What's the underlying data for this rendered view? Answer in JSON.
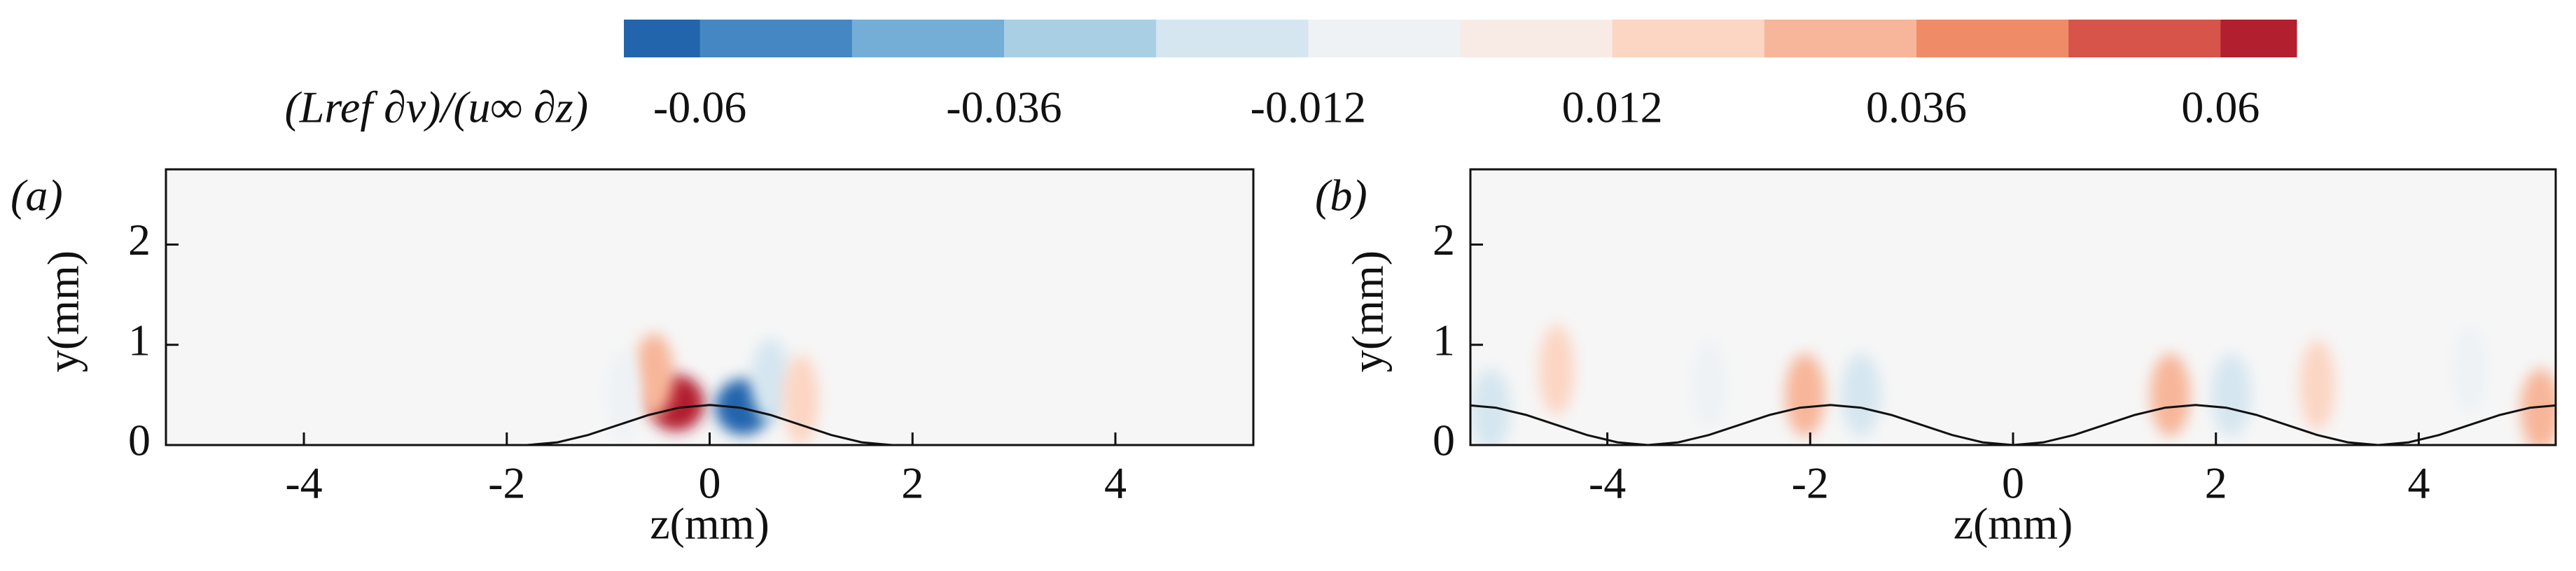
{
  "colorbar": {
    "label": "(Lref ∂v)/(u∞ ∂z)",
    "lim": [
      -0.066,
      0.066
    ],
    "ticks": [
      -0.06,
      -0.036,
      -0.012,
      0.012,
      0.036,
      0.06
    ],
    "levels": [
      -0.06,
      -0.048,
      -0.036,
      -0.024,
      -0.012,
      0,
      0.012,
      0.024,
      0.036,
      0.048,
      0.06
    ],
    "colors": [
      "#2265ad",
      "#4487c2",
      "#74aed6",
      "#a9cfe5",
      "#d5e6f0",
      "#eef2f5",
      "#f8ebe6",
      "#fcd5c3",
      "#f7b699",
      "#ef8c67",
      "#d6544a",
      "#b21f2e"
    ]
  },
  "chart_data": [
    {
      "type": "contour",
      "label": "(a)",
      "xlabel": "z(mm)",
      "ylabel": "y(mm)",
      "xlim": [
        -5.36,
        5.36
      ],
      "ylim": [
        0,
        2.75
      ],
      "xticks": [
        -4,
        -2,
        0,
        2,
        4
      ],
      "yticks": [
        0,
        1,
        2
      ],
      "wall": {
        "x": [
          -5.4,
          -5.1,
          -4.8,
          -4.5,
          -4.2,
          -3.9,
          -3.6,
          -3.3,
          -3.0,
          -2.7,
          -2.4,
          -2.1,
          -1.8,
          -1.5,
          -1.2,
          -0.9,
          -0.6,
          -0.3,
          0,
          0.3,
          0.6,
          0.9,
          1.2,
          1.5,
          1.8,
          2.1,
          2.4,
          2.7,
          3.0,
          3.3,
          3.6,
          3.9,
          4.2,
          4.5,
          4.8,
          5.1,
          5.4
        ],
        "y": [
          0,
          0,
          0,
          0,
          0,
          0,
          0,
          0,
          0,
          0,
          0,
          0,
          0,
          0.027,
          0.1,
          0.2,
          0.3,
          0.373,
          0.4,
          0.373,
          0.3,
          0.2,
          0.1,
          0.027,
          0,
          0,
          0,
          0,
          0,
          0,
          0,
          0,
          0,
          0,
          0,
          0,
          0
        ]
      },
      "features": {
        "z": [
          -0.33,
          0.33,
          -0.55,
          0.6,
          -0.85,
          0.9
        ],
        "y": [
          0.42,
          0.38,
          0.7,
          0.65,
          0.5,
          0.45
        ],
        "values": [
          0.066,
          -0.066,
          0.024,
          -0.024,
          -0.012,
          0.012
        ]
      }
    },
    {
      "type": "contour",
      "label": "(b)",
      "xlabel": "z(mm)",
      "ylabel": "y(mm)",
      "xlim": [
        -5.35,
        5.35
      ],
      "ylim": [
        0,
        2.75
      ],
      "xticks": [
        -4,
        -2,
        0,
        2,
        4
      ],
      "yticks": [
        0,
        1,
        2
      ],
      "wall": {
        "x": [
          -5.4,
          -5.1,
          -4.8,
          -4.5,
          -4.2,
          -3.9,
          -3.6,
          -3.3,
          -3.0,
          -2.7,
          -2.4,
          -2.1,
          -1.8,
          -1.5,
          -1.2,
          -0.9,
          -0.6,
          -0.3,
          0,
          0.3,
          0.6,
          0.9,
          1.2,
          1.5,
          1.8,
          2.1,
          2.4,
          2.7,
          3.0,
          3.3,
          3.6,
          3.9,
          4.2,
          4.5,
          4.8,
          5.1,
          5.4
        ],
        "y": [
          0.4,
          0.373,
          0.3,
          0.2,
          0.1,
          0.027,
          0,
          0.027,
          0.1,
          0.2,
          0.3,
          0.373,
          0.4,
          0.373,
          0.3,
          0.2,
          0.1,
          0.027,
          0,
          0.027,
          0.1,
          0.2,
          0.3,
          0.373,
          0.4,
          0.373,
          0.3,
          0.2,
          0.1,
          0.027,
          0,
          0.027,
          0.1,
          0.2,
          0.3,
          0.373,
          0.4
        ]
      },
      "features": {
        "z": [
          -5.15,
          -4.5,
          -3.0,
          -2.05,
          -1.5,
          1.55,
          2.15,
          3.0,
          4.5,
          5.2
        ],
        "y": [
          0.35,
          0.75,
          0.6,
          0.5,
          0.5,
          0.5,
          0.5,
          0.6,
          0.75,
          0.35
        ],
        "values": [
          -0.024,
          0.012,
          -0.012,
          0.024,
          -0.024,
          0.024,
          -0.024,
          0.012,
          -0.012,
          0.024
        ]
      }
    }
  ]
}
